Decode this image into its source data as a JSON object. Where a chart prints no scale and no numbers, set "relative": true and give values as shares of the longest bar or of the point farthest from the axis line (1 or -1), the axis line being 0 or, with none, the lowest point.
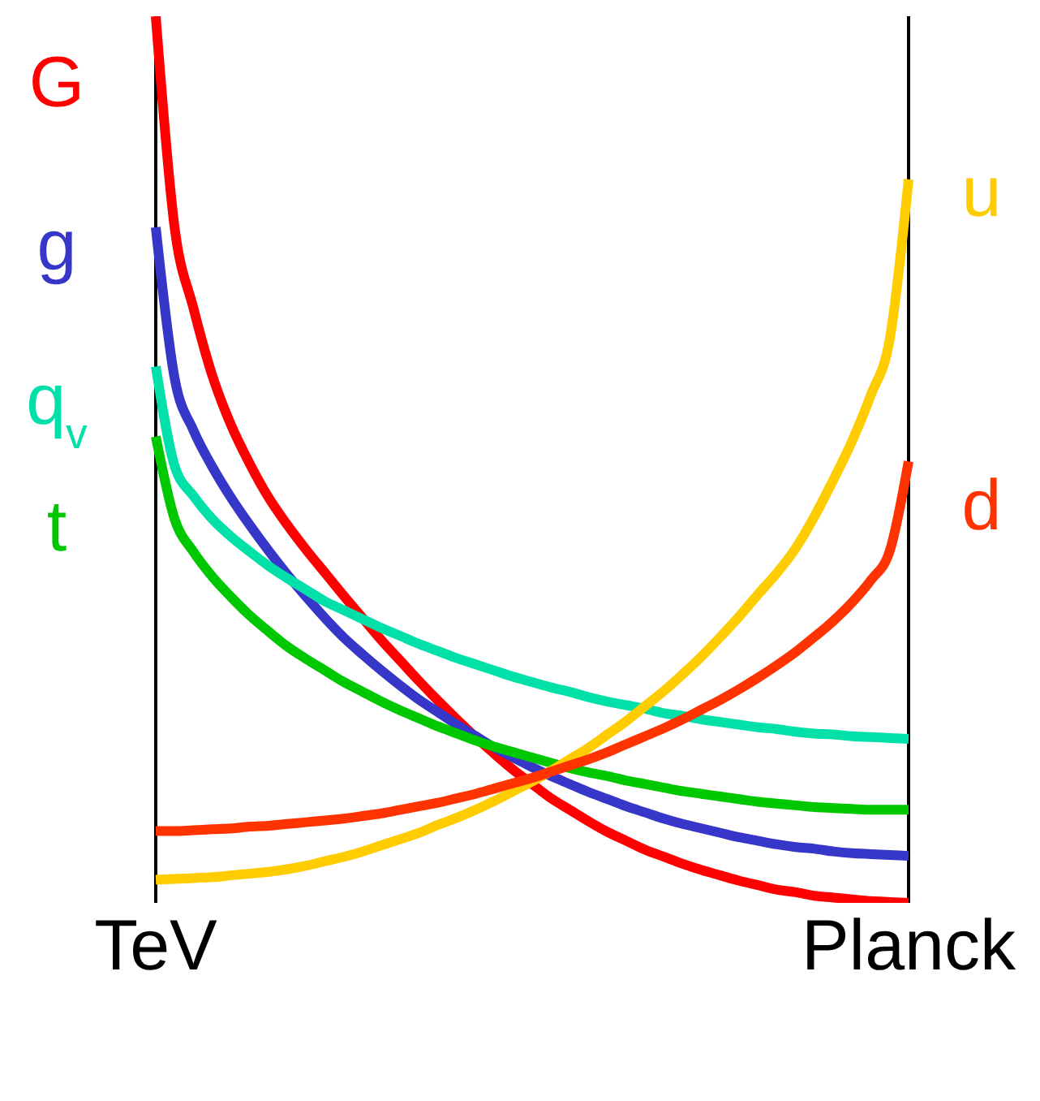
{
  "chart_data": {
    "type": "line",
    "relative": true,
    "categories": [
      "TeV",
      null,
      null,
      null,
      null,
      null,
      null,
      null,
      null,
      null,
      null,
      null,
      null,
      null,
      null,
      null,
      null,
      null,
      null,
      null,
      null,
      null,
      null,
      null,
      null,
      null,
      null,
      null,
      null,
      null,
      null,
      null,
      null,
      null,
      null,
      null,
      null,
      null,
      null,
      null,
      "Planck"
    ],
    "series": [
      {
        "name": "G",
        "color": "#ff0000",
        "values": [
          1.0,
          0.762,
          0.671,
          0.595,
          0.539,
          0.495,
          0.457,
          0.426,
          0.398,
          0.372,
          0.346,
          0.321,
          0.296,
          0.273,
          0.25,
          0.228,
          0.207,
          0.187,
          0.168,
          0.15,
          0.134,
          0.118,
          0.105,
          0.092,
          0.08,
          0.07,
          0.06,
          0.052,
          0.044,
          0.037,
          0.031,
          0.025,
          0.02,
          0.015,
          0.012,
          0.008,
          0.006,
          0.004,
          0.002,
          0.001,
          0
        ]
      },
      {
        "name": "g",
        "color": "#3636c8",
        "values": [
          0.762,
          0.592,
          0.533,
          0.492,
          0.457,
          0.426,
          0.397,
          0.37,
          0.345,
          0.321,
          0.299,
          0.28,
          0.262,
          0.245,
          0.229,
          0.215,
          0.201,
          0.188,
          0.175,
          0.164,
          0.153,
          0.143,
          0.134,
          0.125,
          0.117,
          0.109,
          0.102,
          0.095,
          0.089,
          0.084,
          0.079,
          0.074,
          0.07,
          0.066,
          0.063,
          0.061,
          0.058,
          0.056,
          0.055,
          0.054,
          0.053
        ]
      },
      {
        "name": "q$_{v}$",
        "color": "#00e0a8",
        "values": [
          0.605,
          0.493,
          0.459,
          0.433,
          0.413,
          0.396,
          0.38,
          0.366,
          0.353,
          0.34,
          0.33,
          0.32,
          0.31,
          0.301,
          0.292,
          0.284,
          0.276,
          0.269,
          0.262,
          0.255,
          0.249,
          0.243,
          0.238,
          0.232,
          0.227,
          0.223,
          0.219,
          0.214,
          0.211,
          0.207,
          0.204,
          0.201,
          0.198,
          0.196,
          0.193,
          0.191,
          0.19,
          0.188,
          0.187,
          0.186,
          0.185
        ]
      },
      {
        "name": "t",
        "color": "#00c800",
        "values": [
          0.526,
          0.433,
          0.396,
          0.368,
          0.345,
          0.324,
          0.306,
          0.289,
          0.275,
          0.262,
          0.249,
          0.238,
          0.227,
          0.217,
          0.208,
          0.199,
          0.191,
          0.183,
          0.176,
          0.17,
          0.164,
          0.158,
          0.152,
          0.147,
          0.143,
          0.138,
          0.134,
          0.13,
          0.126,
          0.123,
          0.12,
          0.117,
          0.114,
          0.112,
          0.11,
          0.108,
          0.107,
          0.106,
          0.105,
          0.105,
          0.105
        ]
      },
      {
        "name": "u",
        "color": "#ffcc00",
        "values": [
          0.026,
          0.027,
          0.028,
          0.029,
          0.031,
          0.033,
          0.035,
          0.038,
          0.042,
          0.047,
          0.052,
          0.058,
          0.065,
          0.072,
          0.079,
          0.088,
          0.096,
          0.105,
          0.115,
          0.126,
          0.137,
          0.149,
          0.162,
          0.175,
          0.19,
          0.205,
          0.222,
          0.239,
          0.258,
          0.278,
          0.3,
          0.323,
          0.348,
          0.372,
          0.4,
          0.436,
          0.477,
          0.521,
          0.573,
          0.636,
          0.816
        ]
      },
      {
        "name": "d",
        "color": "#ff3300",
        "values": [
          0.081,
          0.081,
          0.082,
          0.083,
          0.084,
          0.086,
          0.087,
          0.089,
          0.091,
          0.093,
          0.095,
          0.098,
          0.101,
          0.105,
          0.109,
          0.113,
          0.118,
          0.123,
          0.129,
          0.135,
          0.141,
          0.148,
          0.155,
          0.162,
          0.17,
          0.179,
          0.188,
          0.197,
          0.207,
          0.218,
          0.229,
          0.241,
          0.254,
          0.268,
          0.283,
          0.3,
          0.318,
          0.339,
          0.364,
          0.397,
          0.498
        ]
      }
    ],
    "ref_lines": [
      {
        "axis": "x",
        "value": "TeV",
        "color": "#000000"
      },
      {
        "axis": "x",
        "value": "Planck",
        "color": "#000000"
      }
    ]
  }
}
